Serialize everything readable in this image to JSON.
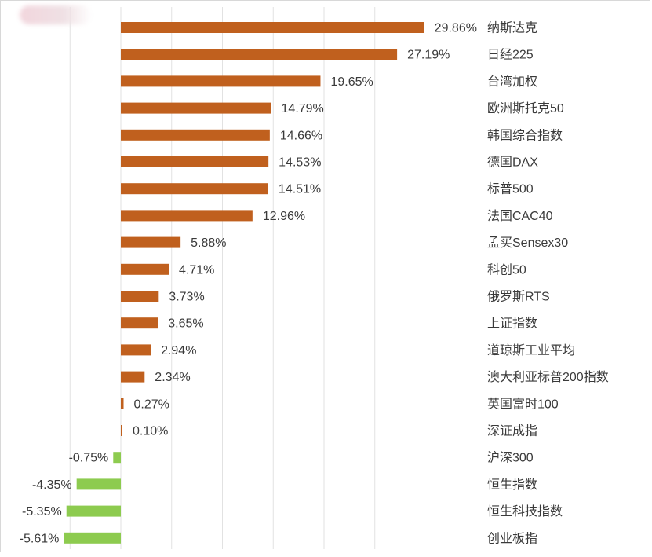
{
  "chart_data": {
    "type": "bar",
    "orientation": "horizontal",
    "value_unit": "%",
    "xlim": [
      -5.61,
      29.86
    ],
    "grid": true,
    "legend": "none",
    "colors": {
      "positive": "#C0601E",
      "negative": "#8DCB4F",
      "label": "#3a3a3a",
      "grid": "#e2e2e2"
    },
    "categories": [
      "纳斯达克",
      "日经225",
      "台湾加权",
      "欧洲斯托克50",
      "韩国综合指数",
      "德国DAX",
      "标普500",
      "法国CAC40",
      "孟买Sensex30",
      "科创50",
      "俄罗斯RTS",
      "上证指数",
      "道琼斯工业平均",
      "澳大利亚标普200指数",
      "英国富时100",
      "深证成指",
      "沪深300",
      "恒生指数",
      "恒生科技指数",
      "创业板指"
    ],
    "values": [
      29.86,
      27.19,
      19.65,
      14.79,
      14.66,
      14.53,
      14.51,
      12.96,
      5.88,
      4.71,
      3.73,
      3.65,
      2.94,
      2.34,
      0.27,
      0.1,
      -0.75,
      -4.35,
      -5.35,
      -5.61
    ],
    "value_labels": [
      "29.86%",
      "27.19%",
      "19.65%",
      "14.79%",
      "14.66%",
      "14.53%",
      "14.51%",
      "12.96%",
      "5.88%",
      "4.71%",
      "3.73%",
      "3.65%",
      "2.94%",
      "2.34%",
      "0.27%",
      "0.10%",
      "-0.75%",
      "-4.35%",
      "-5.35%",
      "-5.61%"
    ]
  }
}
